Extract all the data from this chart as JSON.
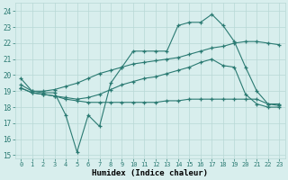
{
  "xlabel": "Humidex (Indice chaleur)",
  "background_color": "#d8eeed",
  "grid_color": "#b8d8d5",
  "line_color": "#2a7a72",
  "xlim": [
    -0.5,
    23.5
  ],
  "ylim": [
    14.8,
    24.5
  ],
  "yticks": [
    15,
    16,
    17,
    18,
    19,
    20,
    21,
    22,
    23,
    24
  ],
  "xticks": [
    0,
    1,
    2,
    3,
    4,
    5,
    6,
    7,
    8,
    9,
    10,
    11,
    12,
    13,
    14,
    15,
    16,
    17,
    18,
    19,
    20,
    21,
    22,
    23
  ],
  "series": [
    {
      "x": [
        0,
        1,
        2,
        3,
        4,
        5,
        6,
        7,
        8,
        9,
        10,
        11,
        12,
        13,
        14,
        15,
        16,
        17,
        18,
        19,
        20,
        21,
        22,
        23
      ],
      "y": [
        19.8,
        19.0,
        18.9,
        18.9,
        17.5,
        15.2,
        17.5,
        16.8,
        19.5,
        20.5,
        21.5,
        21.5,
        21.5,
        21.5,
        23.1,
        23.3,
        23.3,
        23.8,
        23.1,
        22.1,
        20.5,
        19.0,
        18.2,
        18.2
      ]
    },
    {
      "x": [
        0,
        1,
        2,
        3,
        4,
        5,
        6,
        7,
        8,
        9,
        10,
        11,
        12,
        13,
        14,
        15,
        16,
        17,
        18,
        19,
        20,
        21,
        22,
        23
      ],
      "y": [
        19.4,
        19.0,
        19.0,
        19.1,
        19.3,
        19.5,
        19.8,
        20.1,
        20.3,
        20.5,
        20.7,
        20.8,
        20.9,
        21.0,
        21.1,
        21.3,
        21.5,
        21.7,
        21.8,
        22.0,
        22.1,
        22.1,
        22.0,
        21.9
      ]
    },
    {
      "x": [
        0,
        1,
        2,
        3,
        4,
        5,
        6,
        7,
        8,
        9,
        10,
        11,
        12,
        13,
        14,
        15,
        16,
        17,
        18,
        19,
        20,
        21,
        22,
        23
      ],
      "y": [
        19.2,
        18.9,
        18.8,
        18.7,
        18.5,
        18.4,
        18.3,
        18.3,
        18.3,
        18.3,
        18.3,
        18.3,
        18.3,
        18.4,
        18.4,
        18.5,
        18.5,
        18.5,
        18.5,
        18.5,
        18.5,
        18.5,
        18.2,
        18.1
      ]
    },
    {
      "x": [
        0,
        1,
        2,
        3,
        4,
        5,
        6,
        7,
        8,
        9,
        10,
        11,
        12,
        13,
        14,
        15,
        16,
        17,
        18,
        19,
        20,
        21,
        22,
        23
      ],
      "y": [
        19.2,
        18.9,
        18.8,
        18.7,
        18.6,
        18.5,
        18.6,
        18.8,
        19.1,
        19.4,
        19.6,
        19.8,
        19.9,
        20.1,
        20.3,
        20.5,
        20.8,
        21.0,
        20.6,
        20.5,
        18.8,
        18.2,
        18.0,
        18.0
      ]
    }
  ]
}
